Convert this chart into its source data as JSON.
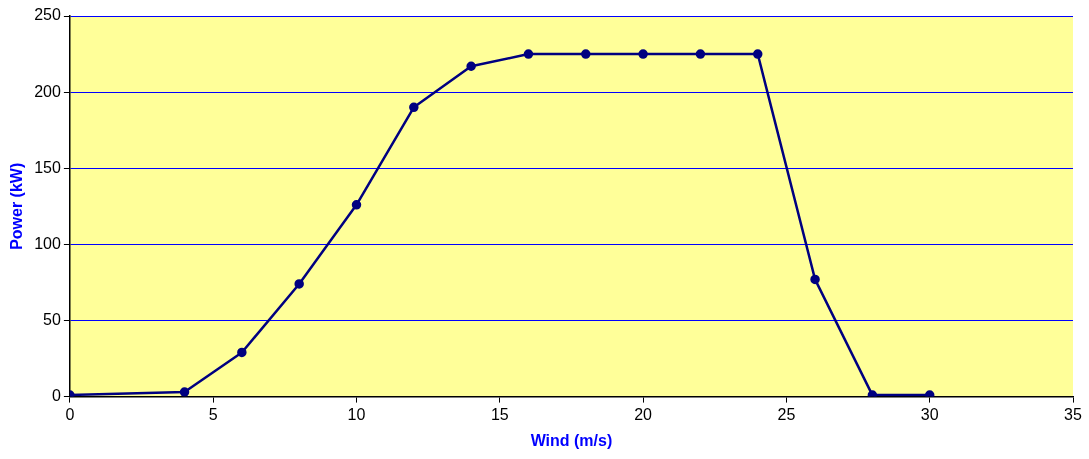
{
  "chart_data": {
    "type": "line",
    "xlabel": "Wind (m/s)",
    "ylabel": "Power (kW)",
    "x": [
      0,
      4,
      6,
      8,
      10,
      12,
      14,
      16,
      18,
      20,
      22,
      24,
      26,
      28,
      30
    ],
    "series": [
      {
        "color": "#000080",
        "values": [
          1,
          3,
          29,
          74,
          126,
          190,
          217,
          225,
          225,
          225,
          225,
          225,
          77,
          1,
          1
        ]
      }
    ],
    "xlim": [
      0,
      35
    ],
    "xticks": [
      0,
      5,
      10,
      15,
      20,
      25,
      30,
      35
    ],
    "ylim": [
      0,
      250
    ],
    "yticks": [
      0,
      50,
      100,
      150,
      200,
      250
    ],
    "grid": "y",
    "marker": "circle",
    "line_style": "solid",
    "legend": false
  }
}
